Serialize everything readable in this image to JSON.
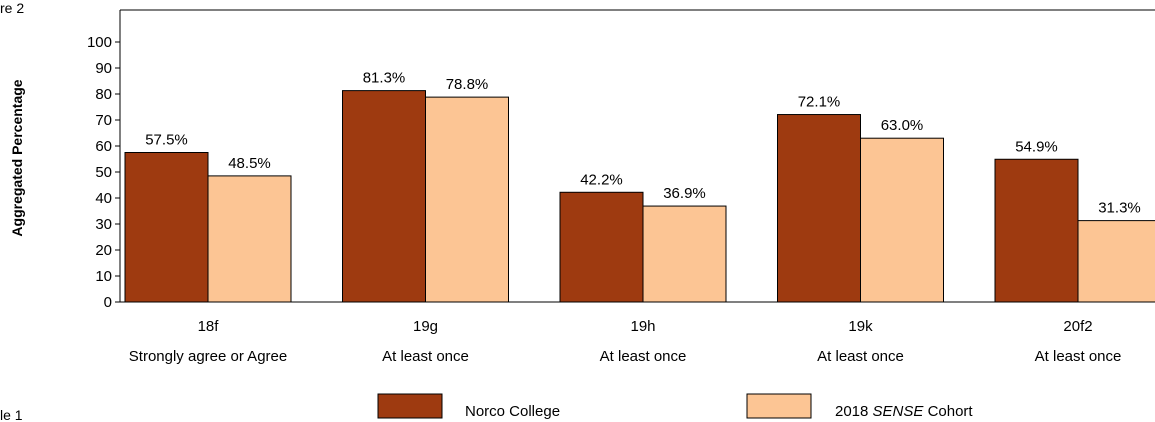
{
  "page": {
    "top_left_fragment": "re 2",
    "bottom_left_fragment": "le 1"
  },
  "chart_data": {
    "type": "bar",
    "title": "",
    "xlabel": "",
    "ylabel": "Aggregated Percentage",
    "ylim": [
      0,
      100
    ],
    "yticks": [
      0,
      10,
      20,
      30,
      40,
      50,
      60,
      70,
      80,
      90,
      100
    ],
    "grid": false,
    "legend_position": "bottom",
    "categories": [
      {
        "code": "18f",
        "label": "Strongly agree or Agree"
      },
      {
        "code": "19g",
        "label": "At least once"
      },
      {
        "code": "19h",
        "label": "At least once"
      },
      {
        "code": "19k",
        "label": "At least once"
      },
      {
        "code": "20f2",
        "label": "At least once"
      }
    ],
    "series": [
      {
        "name": "Norco College",
        "color": "#9e3a10",
        "values": [
          57.5,
          81.3,
          42.2,
          72.1,
          54.9
        ],
        "labels": [
          "57.5%",
          "81.3%",
          "42.2%",
          "72.1%",
          "54.9%"
        ]
      },
      {
        "name": "2018 SENSE Cohort",
        "name_prefix": "2018 ",
        "name_italic": "SENSE",
        "name_suffix": " Cohort",
        "color": "#fcc594",
        "values": [
          48.5,
          78.8,
          36.9,
          63.0,
          31.3
        ],
        "labels": [
          "48.5%",
          "78.8%",
          "36.9%",
          "63.0%",
          "31.3%"
        ]
      }
    ]
  }
}
